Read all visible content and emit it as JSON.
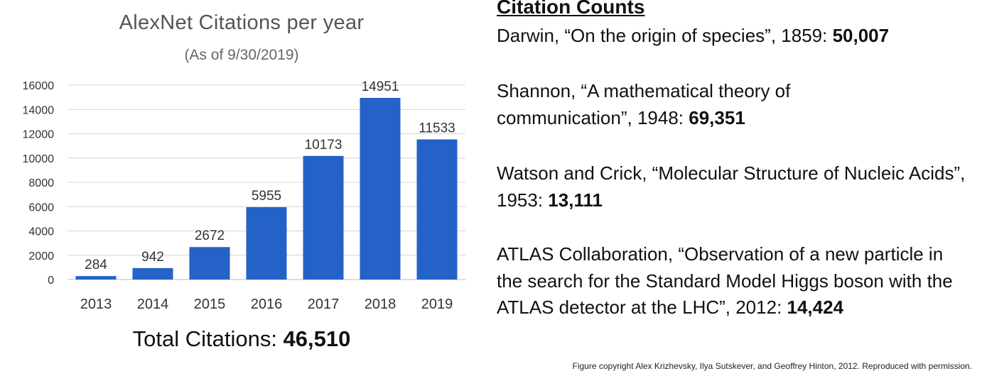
{
  "chart_data": {
    "type": "bar",
    "title": "AlexNet Citations per year",
    "subtitle": "(As of 9/30/2019)",
    "categories": [
      "2013",
      "2014",
      "2015",
      "2016",
      "2017",
      "2018",
      "2019"
    ],
    "values": [
      284,
      942,
      2672,
      5955,
      10173,
      14951,
      11533
    ],
    "ylim": [
      0,
      16000
    ],
    "yticks": [
      "0",
      "2000",
      "4000",
      "6000",
      "8000",
      "10000",
      "12000",
      "14000",
      "16000"
    ],
    "grid": true,
    "data_labels": true,
    "bar_color": "#2462c8",
    "xlabel": "",
    "ylabel": ""
  },
  "total": {
    "label": "Total Citations: ",
    "value": "46,510"
  },
  "citations": {
    "heading": "Citation Counts",
    "entries": [
      {
        "text": "Darwin, “On the origin of species”, 1859: ",
        "count": "50,007"
      },
      {
        "text": "Shannon, “A mathematical theory of communication”, 1948: ",
        "count": "69,351"
      },
      {
        "text": "Watson and Crick, “Molecular Structure of Nucleic Acids”, 1953: ",
        "count": "13,111"
      },
      {
        "text": "ATLAS Collaboration, “Observation of a new particle in the search for the Standard Model Higgs boson with the ATLAS detector at the LHC”, 2012: ",
        "count": "14,424"
      }
    ]
  },
  "footer": "Figure copyright Alex Krizhevsky, Ilya Sutskever, and Geoffrey Hinton, 2012. Reproduced with permission."
}
